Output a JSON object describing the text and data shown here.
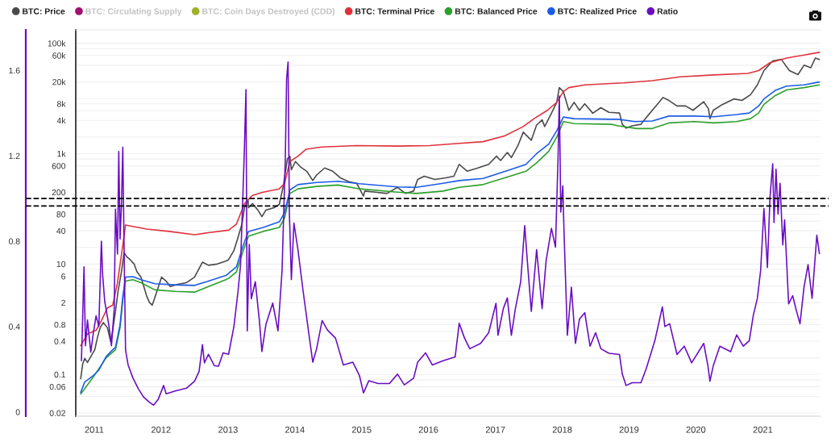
{
  "chart_data": {
    "type": "line",
    "legend": "top",
    "grid": "y",
    "log": "y",
    "xlim": [
      "2010-09-22",
      "2021-11-12"
    ],
    "xticks": [
      "2011",
      "2012",
      "2013",
      "2014",
      "2015",
      "2016",
      "2017",
      "2018",
      "2019",
      "2020",
      "2021"
    ],
    "ylim": [
      0.0175,
      175000
    ],
    "yticks": [
      0.02,
      {
        "value": 0.04,
        "label": null
      },
      0.06,
      {
        "value": 0.08,
        "label": null
      },
      0.1,
      {
        "value": 0.2,
        "label": null
      },
      0.4,
      {
        "value": 0.6,
        "label": null
      },
      0.8,
      {
        "value": 1,
        "label": null
      },
      2,
      {
        "value": 4,
        "label": null
      },
      6,
      {
        "value": 8,
        "label": null
      },
      10,
      {
        "value": 20,
        "label": null
      },
      40,
      {
        "value": 60,
        "label": null
      },
      80,
      {
        "value": 100,
        "label": null
      },
      200,
      {
        "value": 400,
        "label": null
      },
      600,
      {
        "value": 800,
        "label": null
      },
      {
        "value": 1000,
        "label": "1k"
      },
      {
        "value": 2000,
        "label": null
      },
      {
        "value": 4000,
        "label": "4k"
      },
      {
        "value": 6000,
        "label": null
      },
      {
        "value": 8000,
        "label": "8k"
      },
      {
        "value": 10000,
        "label": null
      },
      {
        "value": 20000,
        "label": "20k"
      },
      {
        "value": 40000,
        "label": null
      },
      {
        "value": 60000,
        "label": "60k"
      },
      {
        "value": 80000,
        "label": null
      },
      {
        "value": 100000,
        "label": "100k"
      }
    ],
    "y2lim": [
      -0.02,
      1.79
    ],
    "y2ticks": [
      0,
      0.4,
      0.8,
      1.2,
      1.6
    ],
    "ref_lines": [
      {
        "axis": "y2",
        "value": 1.0,
        "color": "#000000",
        "line_style": "dashed"
      },
      {
        "axis": "y2",
        "value": 0.965,
        "color": "#000000",
        "line_style": "dashed"
      }
    ],
    "series": [
      {
        "name": "BTC: Price",
        "color": "#4a4a4a",
        "x": [
          "2010-10-19",
          "2010-10-30",
          "2010-11-10",
          "2010-11-25",
          "2010-12-13",
          "2011-01-04",
          "2011-01-18",
          "2011-02-02",
          "2011-02-20",
          "2011-03-14",
          "2011-04-01",
          "2011-04-12",
          "2011-04-27",
          "2011-05-11",
          "2011-05-30",
          "2011-06-13",
          "2011-06-28",
          "2011-07-16",
          "2011-08-07",
          "2011-08-22",
          "2011-09-13",
          "2011-09-27",
          "2011-10-15",
          "2011-10-30",
          "2011-11-14",
          "2011-12-05",
          "2012-01-04",
          "2012-01-29",
          "2012-02-20",
          "2012-04-01",
          "2012-05-19",
          "2012-07-02",
          "2012-08-14",
          "2012-09-16",
          "2012-11-03",
          "2012-12-20",
          "2013-01-04",
          "2013-02-02",
          "2013-02-24",
          "2013-03-18",
          "2013-04-01",
          "2013-04-20",
          "2013-04-23",
          "2013-05-15",
          "2013-06-13",
          "2013-07-05",
          "2013-07-27",
          "2013-09-09",
          "2013-10-08",
          "2013-10-30",
          "2013-11-21",
          "2013-12-05",
          "2013-12-13",
          "2014-01-04",
          "2014-02-02",
          "2014-03-07",
          "2014-04-09",
          "2014-04-30",
          "2014-06-13",
          "2014-07-27",
          "2014-09-09",
          "2014-10-23",
          "2014-12-05",
          "2015-01-11",
          "2015-01-18",
          "2015-03-18",
          "2015-05-19",
          "2015-07-16",
          "2015-08-29",
          "2015-10-12",
          "2015-11-03",
          "2015-12-09",
          "2016-02-06",
          "2016-04-05",
          "2016-05-19",
          "2016-06-17",
          "2016-07-31",
          "2016-09-27",
          "2016-11-25",
          "2017-01-07",
          "2017-01-29",
          "2017-03-07",
          "2017-03-29",
          "2017-05-04",
          "2017-06-02",
          "2017-07-16",
          "2017-08-14",
          "2017-09-13",
          "2017-09-27",
          "2017-11-03",
          "2017-12-02",
          "2017-12-16",
          "2018-01-07",
          "2018-02-06",
          "2018-03-07",
          "2018-04-05",
          "2018-05-04",
          "2018-06-17",
          "2018-07-31",
          "2018-09-13",
          "2018-11-10",
          "2018-11-25",
          "2018-12-16",
          "2019-01-18",
          "2019-03-07",
          "2019-04-12",
          "2019-05-22",
          "2019-07-05",
          "2019-08-07",
          "2019-09-20",
          "2019-11-06",
          "2019-12-16",
          "2020-02-13",
          "2020-03-10",
          "2020-03-18",
          "2020-04-05",
          "2020-05-26",
          "2020-07-27",
          "2020-09-09",
          "2020-10-26",
          "2020-12-02",
          "2021-01-07",
          "2021-02-24",
          "2021-04-12",
          "2021-05-26",
          "2021-07-12",
          "2021-08-14",
          "2021-09-20",
          "2021-10-15",
          "2021-11-06"
        ],
        "values": [
          0.084,
          0.155,
          0.195,
          0.165,
          0.21,
          0.28,
          0.46,
          0.7,
          0.87,
          0.7,
          0.39,
          0.63,
          1.4,
          3.2,
          7.3,
          16,
          13.5,
          12,
          10,
          7.3,
          5.8,
          4.1,
          2.6,
          2.0,
          1.8,
          2.9,
          5.8,
          4.9,
          3.9,
          4.3,
          4.6,
          5.8,
          10.8,
          9.5,
          10,
          11.3,
          12,
          17.5,
          30,
          53,
          105,
          147,
          105,
          125,
          95,
          72,
          95,
          105,
          120,
          260,
          800,
          900,
          510,
          720,
          570,
          480,
          325,
          410,
          550,
          480,
          360,
          310,
          290,
          170,
          210,
          200,
          190,
          245,
          190,
          210,
          340,
          390,
          340,
          365,
          390,
          640,
          480,
          550,
          640,
          900,
          750,
          1050,
          850,
          1400,
          2450,
          1750,
          3300,
          4100,
          3100,
          5400,
          8500,
          15700,
          13300,
          6100,
          8500,
          6100,
          8000,
          5400,
          6800,
          5600,
          5450,
          3400,
          2900,
          3200,
          3400,
          4800,
          6900,
          10400,
          9200,
          7300,
          7300,
          6100,
          8700,
          6500,
          4300,
          6100,
          7800,
          9800,
          9200,
          11700,
          17600,
          32000,
          48000,
          51000,
          32000,
          27000,
          40000,
          36000,
          54000,
          51000
        ]
      },
      {
        "name": "BTC: Circulating Supply",
        "color": "#a3106f"
      },
      {
        "name": "BTC: Coin Days Destroyed (CDD)",
        "color": "#9fb02a"
      },
      {
        "name": "BTC: Terminal Price",
        "color": "#e0323c",
        "x": [
          "2010-10-19",
          "2010-11-25",
          "2011-01-11",
          "2011-02-09",
          "2011-03-14",
          "2011-04-12",
          "2011-05-08",
          "2011-05-30",
          "2011-06-21",
          "2011-07-31",
          "2011-10-15",
          "2012-02-13",
          "2012-07-02",
          "2012-09-16",
          "2013-01-04",
          "2013-02-16",
          "2013-04-01",
          "2013-05-15",
          "2013-07-12",
          "2013-10-08",
          "2013-11-06",
          "2013-12-05",
          "2014-01-18",
          "2014-03-03",
          "2014-05-30",
          "2014-12-05",
          "2015-07-16",
          "2016-01-07",
          "2016-06-02",
          "2016-10-26",
          "2017-02-20",
          "2017-06-02",
          "2017-07-31",
          "2017-10-12",
          "2017-12-02",
          "2018-01-07",
          "2018-02-06",
          "2018-05-04",
          "2018-09-27",
          "2018-12-05",
          "2019-05-08",
          "2019-10-08",
          "2020-04-09",
          "2020-10-12",
          "2020-12-09",
          "2021-02-09",
          "2021-05-11",
          "2021-08-14",
          "2021-11-06"
        ],
        "values": [
          0.33,
          0.54,
          0.63,
          0.94,
          1.6,
          1.8,
          4.6,
          15,
          51,
          48,
          43,
          39,
          34,
          37,
          41,
          53,
          125,
          175,
          200,
          230,
          290,
          720,
          900,
          1200,
          1320,
          1400,
          1370,
          1400,
          1520,
          1650,
          2100,
          3100,
          4300,
          6100,
          8500,
          13300,
          15700,
          17600,
          18700,
          19200,
          21000,
          24600,
          26700,
          28400,
          32000,
          44400,
          54000,
          61000,
          68500
        ]
      },
      {
        "name": "BTC: Balanced Price",
        "color": "#2ca02c",
        "x": [
          "2010-10-19",
          "2010-12-27",
          "2011-03-07",
          "2011-04-27",
          "2011-05-22",
          "2011-06-06",
          "2011-06-21",
          "2011-07-31",
          "2011-09-13",
          "2011-11-28",
          "2012-03-18",
          "2012-07-02",
          "2012-09-16",
          "2012-12-20",
          "2013-01-04",
          "2013-02-16",
          "2013-03-25",
          "2013-04-23",
          "2013-07-12",
          "2013-10-08",
          "2013-11-06",
          "2013-12-05",
          "2014-01-18",
          "2014-04-30",
          "2014-08-25",
          "2014-12-20",
          "2015-07-16",
          "2015-10-26",
          "2016-03-21",
          "2016-06-17",
          "2016-10-26",
          "2017-03-21",
          "2017-06-17",
          "2017-08-14",
          "2017-10-19",
          "2017-12-02",
          "2018-01-07",
          "2018-03-07",
          "2018-09-27",
          "2018-11-03",
          "2019-02-13",
          "2019-05-08",
          "2019-08-07",
          "2019-12-24",
          "2020-04-09",
          "2020-08-11",
          "2020-10-26",
          "2020-12-09",
          "2021-01-07",
          "2021-03-10",
          "2021-05-11",
          "2021-08-14",
          "2021-11-06"
        ],
        "values": [
          0.044,
          0.09,
          0.2,
          0.28,
          0.7,
          2.2,
          4.9,
          5.2,
          4.6,
          3.4,
          3.2,
          3.1,
          3.9,
          5.2,
          5.5,
          7.2,
          17.5,
          32,
          39,
          46,
          68,
          190,
          230,
          255,
          270,
          230,
          200,
          190,
          210,
          245,
          275,
          390,
          480,
          680,
          1100,
          2000,
          3800,
          3500,
          3400,
          3200,
          2850,
          2850,
          3600,
          3800,
          3600,
          3800,
          4300,
          5450,
          7800,
          11300,
          14300,
          15700,
          17600
        ]
      },
      {
        "name": "BTC: Realized Price",
        "color": "#1a5ce6",
        "x": [
          "2010-10-19",
          "2010-11-10",
          "2010-12-27",
          "2011-01-26",
          "2011-03-07",
          "2011-04-12",
          "2011-04-27",
          "2011-05-22",
          "2011-06-06",
          "2011-06-21",
          "2011-07-31",
          "2011-09-13",
          "2011-11-28",
          "2012-03-18",
          "2012-07-02",
          "2012-09-16",
          "2012-12-20",
          "2013-01-04",
          "2013-02-16",
          "2013-03-25",
          "2013-04-23",
          "2013-07-12",
          "2013-10-08",
          "2013-11-06",
          "2013-12-05",
          "2014-01-18",
          "2014-04-30",
          "2014-08-25",
          "2014-12-20",
          "2015-07-16",
          "2015-10-26",
          "2016-03-21",
          "2016-06-17",
          "2016-10-26",
          "2017-03-21",
          "2017-06-17",
          "2017-08-14",
          "2017-10-19",
          "2017-12-02",
          "2018-01-07",
          "2018-03-07",
          "2018-09-27",
          "2018-11-03",
          "2019-02-02",
          "2019-05-08",
          "2019-08-07",
          "2019-12-24",
          "2020-04-09",
          "2020-08-11",
          "2020-10-19",
          "2020-12-09",
          "2021-01-07",
          "2021-03-10",
          "2021-05-11",
          "2021-08-14",
          "2021-11-06"
        ],
        "values": [
          0.047,
          0.073,
          0.095,
          0.12,
          0.21,
          0.28,
          0.31,
          0.79,
          2.6,
          5.8,
          5.9,
          5.2,
          4.4,
          4.2,
          4.1,
          4.9,
          6.2,
          6.8,
          8.9,
          22,
          39,
          46,
          58,
          85,
          220,
          275,
          300,
          315,
          285,
          250,
          245,
          290,
          325,
          355,
          510,
          640,
          1000,
          1490,
          2600,
          4600,
          4300,
          4200,
          4200,
          3800,
          3900,
          4800,
          4800,
          4650,
          5100,
          5450,
          7300,
          9800,
          14000,
          16700,
          17600,
          19900
        ]
      },
      {
        "name": "Ratio",
        "color": "#6a0dc2",
        "axis": "y2",
        "x": [
          "2010-10-23",
          "2010-10-30",
          "2010-11-06",
          "2010-11-14",
          "2010-11-25",
          "2010-12-13",
          "2010-12-27",
          "2011-01-11",
          "2011-01-26",
          "2011-02-09",
          "2011-02-16",
          "2011-02-27",
          "2011-03-21",
          "2011-04-05",
          "2011-04-20",
          "2011-04-27",
          "2011-05-08",
          "2011-05-15",
          "2011-05-22",
          "2011-05-30",
          "2011-06-06",
          "2011-06-13",
          "2011-06-21",
          "2011-07-05",
          "2011-07-31",
          "2011-08-29",
          "2011-09-27",
          "2011-10-30",
          "2011-11-21",
          "2011-12-16",
          "2012-01-15",
          "2012-01-29",
          "2012-03-18",
          "2012-05-19",
          "2012-07-02",
          "2012-07-27",
          "2012-08-14",
          "2012-08-25",
          "2012-09-16",
          "2012-10-19",
          "2012-11-10",
          "2012-12-05",
          "2013-01-04",
          "2013-02-02",
          "2013-02-24",
          "2013-03-10",
          "2013-03-25",
          "2013-04-01",
          "2013-04-09",
          "2013-04-16",
          "2013-04-27",
          "2013-05-08",
          "2013-05-30",
          "2013-06-21",
          "2013-07-05",
          "2013-07-27",
          "2013-09-02",
          "2013-10-01",
          "2013-10-23",
          "2013-11-10",
          "2013-11-17",
          "2013-11-25",
          "2013-12-02",
          "2013-12-13",
          "2013-12-27",
          "2014-01-18",
          "2014-02-16",
          "2014-03-18",
          "2014-04-09",
          "2014-04-30",
          "2014-05-30",
          "2014-06-28",
          "2014-08-11",
          "2014-09-23",
          "2014-11-14",
          "2014-12-20",
          "2015-01-11",
          "2015-02-09",
          "2015-04-01",
          "2015-06-02",
          "2015-07-16",
          "2015-08-22",
          "2015-10-12",
          "2015-11-03",
          "2015-12-16",
          "2016-01-22",
          "2016-03-21",
          "2016-05-26",
          "2016-06-17",
          "2016-07-16",
          "2016-08-14",
          "2016-10-12",
          "2016-11-25",
          "2017-01-04",
          "2017-01-15",
          "2017-02-13",
          "2017-03-07",
          "2017-03-29",
          "2017-04-20",
          "2017-05-19",
          "2017-06-10",
          "2017-06-24",
          "2017-07-16",
          "2017-08-14",
          "2017-09-13",
          "2017-10-05",
          "2017-11-03",
          "2017-11-25",
          "2017-12-09",
          "2017-12-16",
          "2017-12-24",
          "2018-01-04",
          "2018-01-11",
          "2018-01-29",
          "2018-02-20",
          "2018-03-14",
          "2018-04-05",
          "2018-05-04",
          "2018-06-02",
          "2018-07-02",
          "2018-07-31",
          "2018-09-13",
          "2018-11-10",
          "2018-11-25",
          "2018-12-16",
          "2019-01-18",
          "2019-03-07",
          "2019-04-05",
          "2019-05-22",
          "2019-07-02",
          "2019-07-16",
          "2019-08-11",
          "2019-09-20",
          "2019-10-30",
          "2019-12-09",
          "2020-02-13",
          "2020-03-07",
          "2020-03-18",
          "2020-04-05",
          "2020-05-11",
          "2020-07-09",
          "2020-08-11",
          "2020-09-16",
          "2020-10-19",
          "2020-11-10",
          "2020-12-02",
          "2020-12-20",
          "2021-01-07",
          "2021-01-26",
          "2021-02-09",
          "2021-02-24",
          "2021-03-03",
          "2021-03-14",
          "2021-03-25",
          "2021-04-05",
          "2021-04-20",
          "2021-04-30",
          "2021-05-22",
          "2021-06-13",
          "2021-07-02",
          "2021-07-23",
          "2021-08-14",
          "2021-09-05",
          "2021-09-27",
          "2021-10-23",
          "2021-11-06"
        ],
        "values": [
          0.24,
          0.45,
          0.68,
          0.31,
          0.43,
          0.28,
          0.37,
          0.45,
          0.4,
          0.8,
          0.64,
          0.52,
          0.41,
          0.31,
          0.48,
          0.95,
          0.74,
          1.22,
          0.81,
          0.98,
          1.24,
          0.77,
          0.29,
          0.22,
          0.16,
          0.11,
          0.07,
          0.045,
          0.032,
          0.058,
          0.124,
          0.085,
          0.098,
          0.111,
          0.144,
          0.19,
          0.315,
          0.23,
          0.27,
          0.216,
          0.214,
          0.277,
          0.27,
          0.4,
          0.56,
          0.685,
          1.06,
          1.25,
          1.51,
          0.38,
          0.785,
          0.53,
          0.61,
          0.43,
          0.283,
          0.41,
          0.51,
          0.38,
          0.66,
          1.19,
          1.56,
          1.64,
          0.935,
          0.62,
          0.885,
          0.76,
          0.56,
          0.37,
          0.233,
          0.296,
          0.428,
          0.384,
          0.346,
          0.22,
          0.233,
          0.17,
          0.089,
          0.146,
          0.133,
          0.133,
          0.177,
          0.127,
          0.158,
          0.233,
          0.277,
          0.22,
          0.24,
          0.258,
          0.415,
          0.346,
          0.296,
          0.321,
          0.371,
          0.509,
          0.359,
          0.484,
          0.534,
          0.359,
          0.484,
          0.61,
          0.873,
          0.71,
          0.471,
          0.76,
          0.484,
          0.71,
          0.86,
          0.772,
          1.186,
          1.48,
          0.936,
          1.06,
          0.835,
          0.359,
          0.584,
          0.321,
          0.434,
          0.465,
          0.308,
          0.371,
          0.296,
          0.275,
          0.269,
          0.177,
          0.124,
          0.137,
          0.137,
          0.203,
          0.334,
          0.492,
          0.4,
          0.413,
          0.269,
          0.308,
          0.23,
          0.321,
          0.216,
          0.144,
          0.216,
          0.308,
          0.282,
          0.361,
          0.308,
          0.334,
          0.453,
          0.532,
          0.663,
          0.953,
          0.676,
          1.005,
          1.163,
          0.887,
          1.137,
          0.927,
          1.071,
          0.782,
          0.9,
          0.506,
          0.545,
          0.479,
          0.413,
          0.585,
          0.69,
          0.532,
          0.828,
          0.742
        ]
      }
    ]
  }
}
